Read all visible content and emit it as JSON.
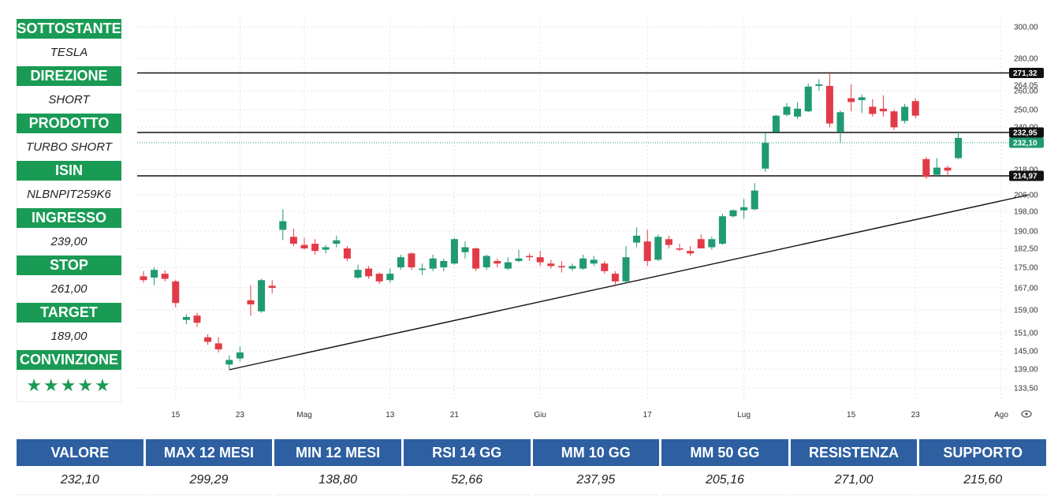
{
  "info": [
    {
      "label": "SOTTOSTANTE",
      "value": "TESLA"
    },
    {
      "label": "DIREZIONE",
      "value": "SHORT"
    },
    {
      "label": "PRODOTTO",
      "value": "TURBO SHORT"
    },
    {
      "label": "ISIN",
      "value": "NLBNPIT259K6"
    },
    {
      "label": "INGRESSO",
      "value": "239,00"
    },
    {
      "label": "STOP",
      "value": "261,00"
    },
    {
      "label": "TARGET",
      "value": "189,00"
    }
  ],
  "conviction": {
    "label": "CONVINZIONE",
    "stars": "★★★★★",
    "rating": 5
  },
  "stats": {
    "headers": [
      "VALORE",
      "MAX 12 MESI",
      "MIN 12 MESI",
      "RSI 14 GG",
      "MM 10 GG",
      "MM 50 GG",
      "RESISTENZA",
      "SUPPORTO"
    ],
    "values": [
      "232,10",
      "299,29",
      "138,80",
      "52,66",
      "237,95",
      "205,16",
      "271,00",
      "215,60"
    ]
  },
  "colors": {
    "up": "#1f9a72",
    "down": "#e23b47",
    "label_green": "#1a9b55",
    "header_blue": "#2d5fa1",
    "price_tag": "#1f9a72",
    "level_tag": "#111111"
  },
  "chart_data": {
    "type": "candlestick",
    "y_ticks": [
      {
        "v": 300.0,
        "label": "300,00"
      },
      {
        "v": 280.0,
        "label": "280,00"
      },
      {
        "v": 260.0,
        "label": "260,00"
      },
      {
        "v": 250.0,
        "label": "250,00"
      },
      {
        "v": 240.0,
        "label": "240,00"
      },
      {
        "v": 218.0,
        "label": "218,00"
      },
      {
        "v": 206.0,
        "label": "206,00"
      },
      {
        "v": 198.0,
        "label": "198,00"
      },
      {
        "v": 190.0,
        "label": "190,00"
      },
      {
        "v": 182.5,
        "label": "182,50"
      },
      {
        "v": 175.0,
        "label": "175,00"
      },
      {
        "v": 167.0,
        "label": "167,00"
      },
      {
        "v": 159.0,
        "label": "159,00"
      },
      {
        "v": 151.0,
        "label": "151,00"
      },
      {
        "v": 145.0,
        "label": "145,00"
      },
      {
        "v": 139.0,
        "label": "139,00"
      },
      {
        "v": 133.5,
        "label": "133,50"
      }
    ],
    "x_labels": [
      {
        "i": 3,
        "label": "15"
      },
      {
        "i": 9,
        "label": "23"
      },
      {
        "i": 15,
        "label": "Mag"
      },
      {
        "i": 23,
        "label": "13"
      },
      {
        "i": 29,
        "label": "21"
      },
      {
        "i": 37,
        "label": "Giu"
      },
      {
        "i": 47,
        "label": "17"
      },
      {
        "i": 56,
        "label": "Lug"
      },
      {
        "i": 66,
        "label": "15"
      },
      {
        "i": 72,
        "label": "23"
      },
      {
        "i": 80,
        "label": "Ago"
      }
    ],
    "levels": [
      {
        "value": 271.32,
        "label": "271,32"
      },
      {
        "value": 232.95,
        "label": "232,95"
      },
      {
        "value": 214.97,
        "label": "214,97"
      }
    ],
    "last_price": {
      "value": 232.1,
      "label": "232,10"
    },
    "extra_label": {
      "value": 264.05,
      "label": "264,05"
    },
    "trendline": {
      "from": {
        "i": 8,
        "price": 138.8
      },
      "to": {
        "i": 82,
        "price": 206.0
      }
    },
    "candles": [
      {
        "i": 0,
        "o": 171.5,
        "h": 173.5,
        "l": 169.0,
        "c": 170.0
      },
      {
        "i": 1,
        "o": 171.0,
        "h": 175.0,
        "l": 168.0,
        "c": 174.0
      },
      {
        "i": 2,
        "o": 172.5,
        "h": 173.8,
        "l": 169.5,
        "c": 170.5
      },
      {
        "i": 3,
        "o": 169.5,
        "h": 170.2,
        "l": 160.0,
        "c": 161.5
      },
      {
        "i": 4,
        "o": 155.5,
        "h": 157.5,
        "l": 154.0,
        "c": 156.5
      },
      {
        "i": 5,
        "o": 157.0,
        "h": 158.0,
        "l": 153.0,
        "c": 154.5
      },
      {
        "i": 6,
        "o": 149.5,
        "h": 150.5,
        "l": 147.0,
        "c": 148.0
      },
      {
        "i": 7,
        "o": 147.5,
        "h": 149.5,
        "l": 144.5,
        "c": 145.5
      },
      {
        "i": 8,
        "o": 140.5,
        "h": 143.5,
        "l": 138.8,
        "c": 142.0
      },
      {
        "i": 9,
        "o": 142.5,
        "h": 146.5,
        "l": 141.5,
        "c": 144.5
      },
      {
        "i": 10,
        "o": 162.5,
        "h": 168.0,
        "l": 157.0,
        "c": 161.0
      },
      {
        "i": 11,
        "o": 158.5,
        "h": 170.5,
        "l": 158.0,
        "c": 170.0
      },
      {
        "i": 12,
        "o": 167.8,
        "h": 170.0,
        "l": 165.0,
        "c": 167.0
      },
      {
        "i": 13,
        "o": 190.5,
        "h": 199.0,
        "l": 186.0,
        "c": 194.0
      },
      {
        "i": 14,
        "o": 187.5,
        "h": 191.0,
        "l": 183.5,
        "c": 184.5
      },
      {
        "i": 15,
        "o": 184.0,
        "h": 187.0,
        "l": 182.0,
        "c": 182.5
      },
      {
        "i": 16,
        "o": 184.5,
        "h": 186.5,
        "l": 180.0,
        "c": 181.5
      },
      {
        "i": 17,
        "o": 182.0,
        "h": 184.0,
        "l": 180.5,
        "c": 183.0
      },
      {
        "i": 18,
        "o": 184.5,
        "h": 188.0,
        "l": 183.0,
        "c": 186.0
      },
      {
        "i": 19,
        "o": 182.5,
        "h": 183.5,
        "l": 177.5,
        "c": 178.5
      },
      {
        "i": 20,
        "o": 171.0,
        "h": 176.0,
        "l": 170.5,
        "c": 174.0
      },
      {
        "i": 21,
        "o": 174.5,
        "h": 175.5,
        "l": 170.5,
        "c": 171.5
      },
      {
        "i": 22,
        "o": 172.5,
        "h": 173.0,
        "l": 168.5,
        "c": 169.5
      },
      {
        "i": 23,
        "o": 170.0,
        "h": 174.5,
        "l": 169.0,
        "c": 172.5
      },
      {
        "i": 24,
        "o": 175.0,
        "h": 180.0,
        "l": 174.0,
        "c": 179.0
      },
      {
        "i": 25,
        "o": 180.5,
        "h": 181.0,
        "l": 174.0,
        "c": 175.0
      },
      {
        "i": 26,
        "o": 174.0,
        "h": 176.5,
        "l": 172.0,
        "c": 174.5
      },
      {
        "i": 27,
        "o": 174.5,
        "h": 180.0,
        "l": 173.5,
        "c": 178.5
      },
      {
        "i": 28,
        "o": 175.0,
        "h": 178.5,
        "l": 173.5,
        "c": 177.5
      },
      {
        "i": 29,
        "o": 176.5,
        "h": 187.0,
        "l": 176.0,
        "c": 186.5
      },
      {
        "i": 30,
        "o": 181.0,
        "h": 185.5,
        "l": 178.5,
        "c": 183.0
      },
      {
        "i": 31,
        "o": 182.5,
        "h": 182.8,
        "l": 173.5,
        "c": 174.5
      },
      {
        "i": 32,
        "o": 175.0,
        "h": 180.0,
        "l": 174.0,
        "c": 179.5
      },
      {
        "i": 33,
        "o": 177.5,
        "h": 178.5,
        "l": 175.0,
        "c": 176.5
      },
      {
        "i": 34,
        "o": 174.5,
        "h": 179.0,
        "l": 174.0,
        "c": 177.0
      },
      {
        "i": 35,
        "o": 177.5,
        "h": 182.0,
        "l": 177.0,
        "c": 178.5
      },
      {
        "i": 36,
        "o": 179.5,
        "h": 180.5,
        "l": 177.5,
        "c": 179.0
      },
      {
        "i": 37,
        "o": 179.0,
        "h": 181.5,
        "l": 175.5,
        "c": 177.0
      },
      {
        "i": 38,
        "o": 176.5,
        "h": 178.0,
        "l": 174.5,
        "c": 175.5
      },
      {
        "i": 39,
        "o": 175.5,
        "h": 177.5,
        "l": 173.0,
        "c": 175.0
      },
      {
        "i": 40,
        "o": 174.5,
        "h": 176.5,
        "l": 173.5,
        "c": 175.5
      },
      {
        "i": 41,
        "o": 174.5,
        "h": 180.0,
        "l": 174.0,
        "c": 178.5
      },
      {
        "i": 42,
        "o": 176.5,
        "h": 179.5,
        "l": 175.5,
        "c": 178.0
      },
      {
        "i": 43,
        "o": 176.5,
        "h": 177.5,
        "l": 172.5,
        "c": 173.5
      },
      {
        "i": 44,
        "o": 172.5,
        "h": 173.5,
        "l": 167.5,
        "c": 169.5
      },
      {
        "i": 45,
        "o": 169.5,
        "h": 183.5,
        "l": 169.0,
        "c": 179.0
      },
      {
        "i": 46,
        "o": 185.0,
        "h": 191.5,
        "l": 183.0,
        "c": 188.0
      },
      {
        "i": 47,
        "o": 185.5,
        "h": 190.5,
        "l": 175.5,
        "c": 177.5
      },
      {
        "i": 48,
        "o": 178.0,
        "h": 188.5,
        "l": 177.5,
        "c": 187.5
      },
      {
        "i": 49,
        "o": 186.5,
        "h": 188.0,
        "l": 182.5,
        "c": 184.0
      },
      {
        "i": 50,
        "o": 182.5,
        "h": 184.5,
        "l": 181.5,
        "c": 182.0
      },
      {
        "i": 51,
        "o": 181.5,
        "h": 183.5,
        "l": 179.5,
        "c": 180.5
      },
      {
        "i": 52,
        "o": 186.5,
        "h": 188.5,
        "l": 182.5,
        "c": 182.5
      },
      {
        "i": 53,
        "o": 183.0,
        "h": 187.5,
        "l": 182.0,
        "c": 186.5
      },
      {
        "i": 54,
        "o": 184.5,
        "h": 197.0,
        "l": 184.0,
        "c": 196.0
      },
      {
        "i": 55,
        "o": 196.0,
        "h": 199.0,
        "l": 195.5,
        "c": 198.5
      },
      {
        "i": 56,
        "o": 198.5,
        "h": 204.0,
        "l": 195.0,
        "c": 200.0
      },
      {
        "i": 57,
        "o": 199.0,
        "h": 211.5,
        "l": 198.5,
        "c": 208.0
      },
      {
        "i": 58,
        "o": 218.5,
        "h": 233.0,
        "l": 217.0,
        "c": 232.0
      },
      {
        "i": 59,
        "o": 233.5,
        "h": 247.0,
        "l": 233.0,
        "c": 246.5
      },
      {
        "i": 60,
        "o": 247.0,
        "h": 253.5,
        "l": 246.0,
        "c": 251.5
      },
      {
        "i": 61,
        "o": 246.0,
        "h": 254.0,
        "l": 244.5,
        "c": 250.5
      },
      {
        "i": 62,
        "o": 249.0,
        "h": 265.0,
        "l": 248.5,
        "c": 263.0
      },
      {
        "i": 63,
        "o": 263.5,
        "h": 267.5,
        "l": 260.0,
        "c": 264.5
      },
      {
        "i": 64,
        "o": 263.5,
        "h": 272.0,
        "l": 239.5,
        "c": 242.0
      },
      {
        "i": 65,
        "o": 234.0,
        "h": 249.5,
        "l": 232.0,
        "c": 248.5
      },
      {
        "i": 66,
        "o": 256.0,
        "h": 264.5,
        "l": 249.0,
        "c": 254.0
      },
      {
        "i": 67,
        "o": 255.0,
        "h": 258.0,
        "l": 248.0,
        "c": 256.5
      },
      {
        "i": 68,
        "o": 251.5,
        "h": 255.5,
        "l": 246.0,
        "c": 247.5
      },
      {
        "i": 69,
        "o": 250.5,
        "h": 257.5,
        "l": 246.0,
        "c": 249.0
      },
      {
        "i": 70,
        "o": 249.0,
        "h": 250.0,
        "l": 236.0,
        "c": 239.5
      },
      {
        "i": 71,
        "o": 243.5,
        "h": 253.0,
        "l": 242.0,
        "c": 251.5
      },
      {
        "i": 72,
        "o": 254.5,
        "h": 256.0,
        "l": 245.0,
        "c": 246.5
      },
      {
        "i": 73,
        "o": 223.5,
        "h": 224.5,
        "l": 213.5,
        "c": 214.5
      },
      {
        "i": 74,
        "o": 215.5,
        "h": 224.0,
        "l": 215.0,
        "c": 219.0
      },
      {
        "i": 75,
        "o": 219.0,
        "h": 220.0,
        "l": 214.5,
        "c": 217.5
      },
      {
        "i": 76,
        "o": 224.0,
        "h": 234.5,
        "l": 223.5,
        "c": 232.5
      }
    ]
  }
}
